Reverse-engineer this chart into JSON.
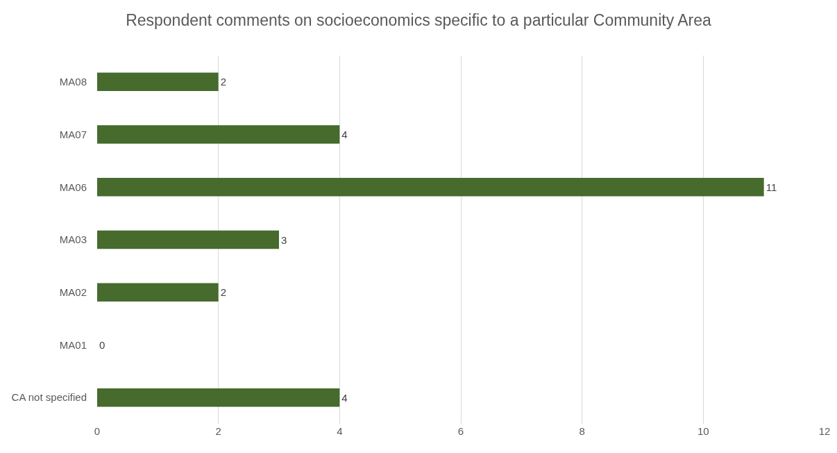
{
  "chart_data": {
    "type": "bar",
    "orientation": "horizontal",
    "title": "Respondent comments on socioeconomics specific to a particular Community Area",
    "categories": [
      "MA08",
      "MA07",
      "MA06",
      "MA03",
      "MA02",
      "MA01",
      "CA not specified"
    ],
    "values": [
      2,
      4,
      11,
      3,
      2,
      0,
      4
    ],
    "color": "#466b2d",
    "xlim": [
      0,
      12
    ],
    "xticks": [
      0,
      2,
      4,
      6,
      8,
      10,
      12
    ],
    "grid": "x",
    "data_labels": true
  }
}
